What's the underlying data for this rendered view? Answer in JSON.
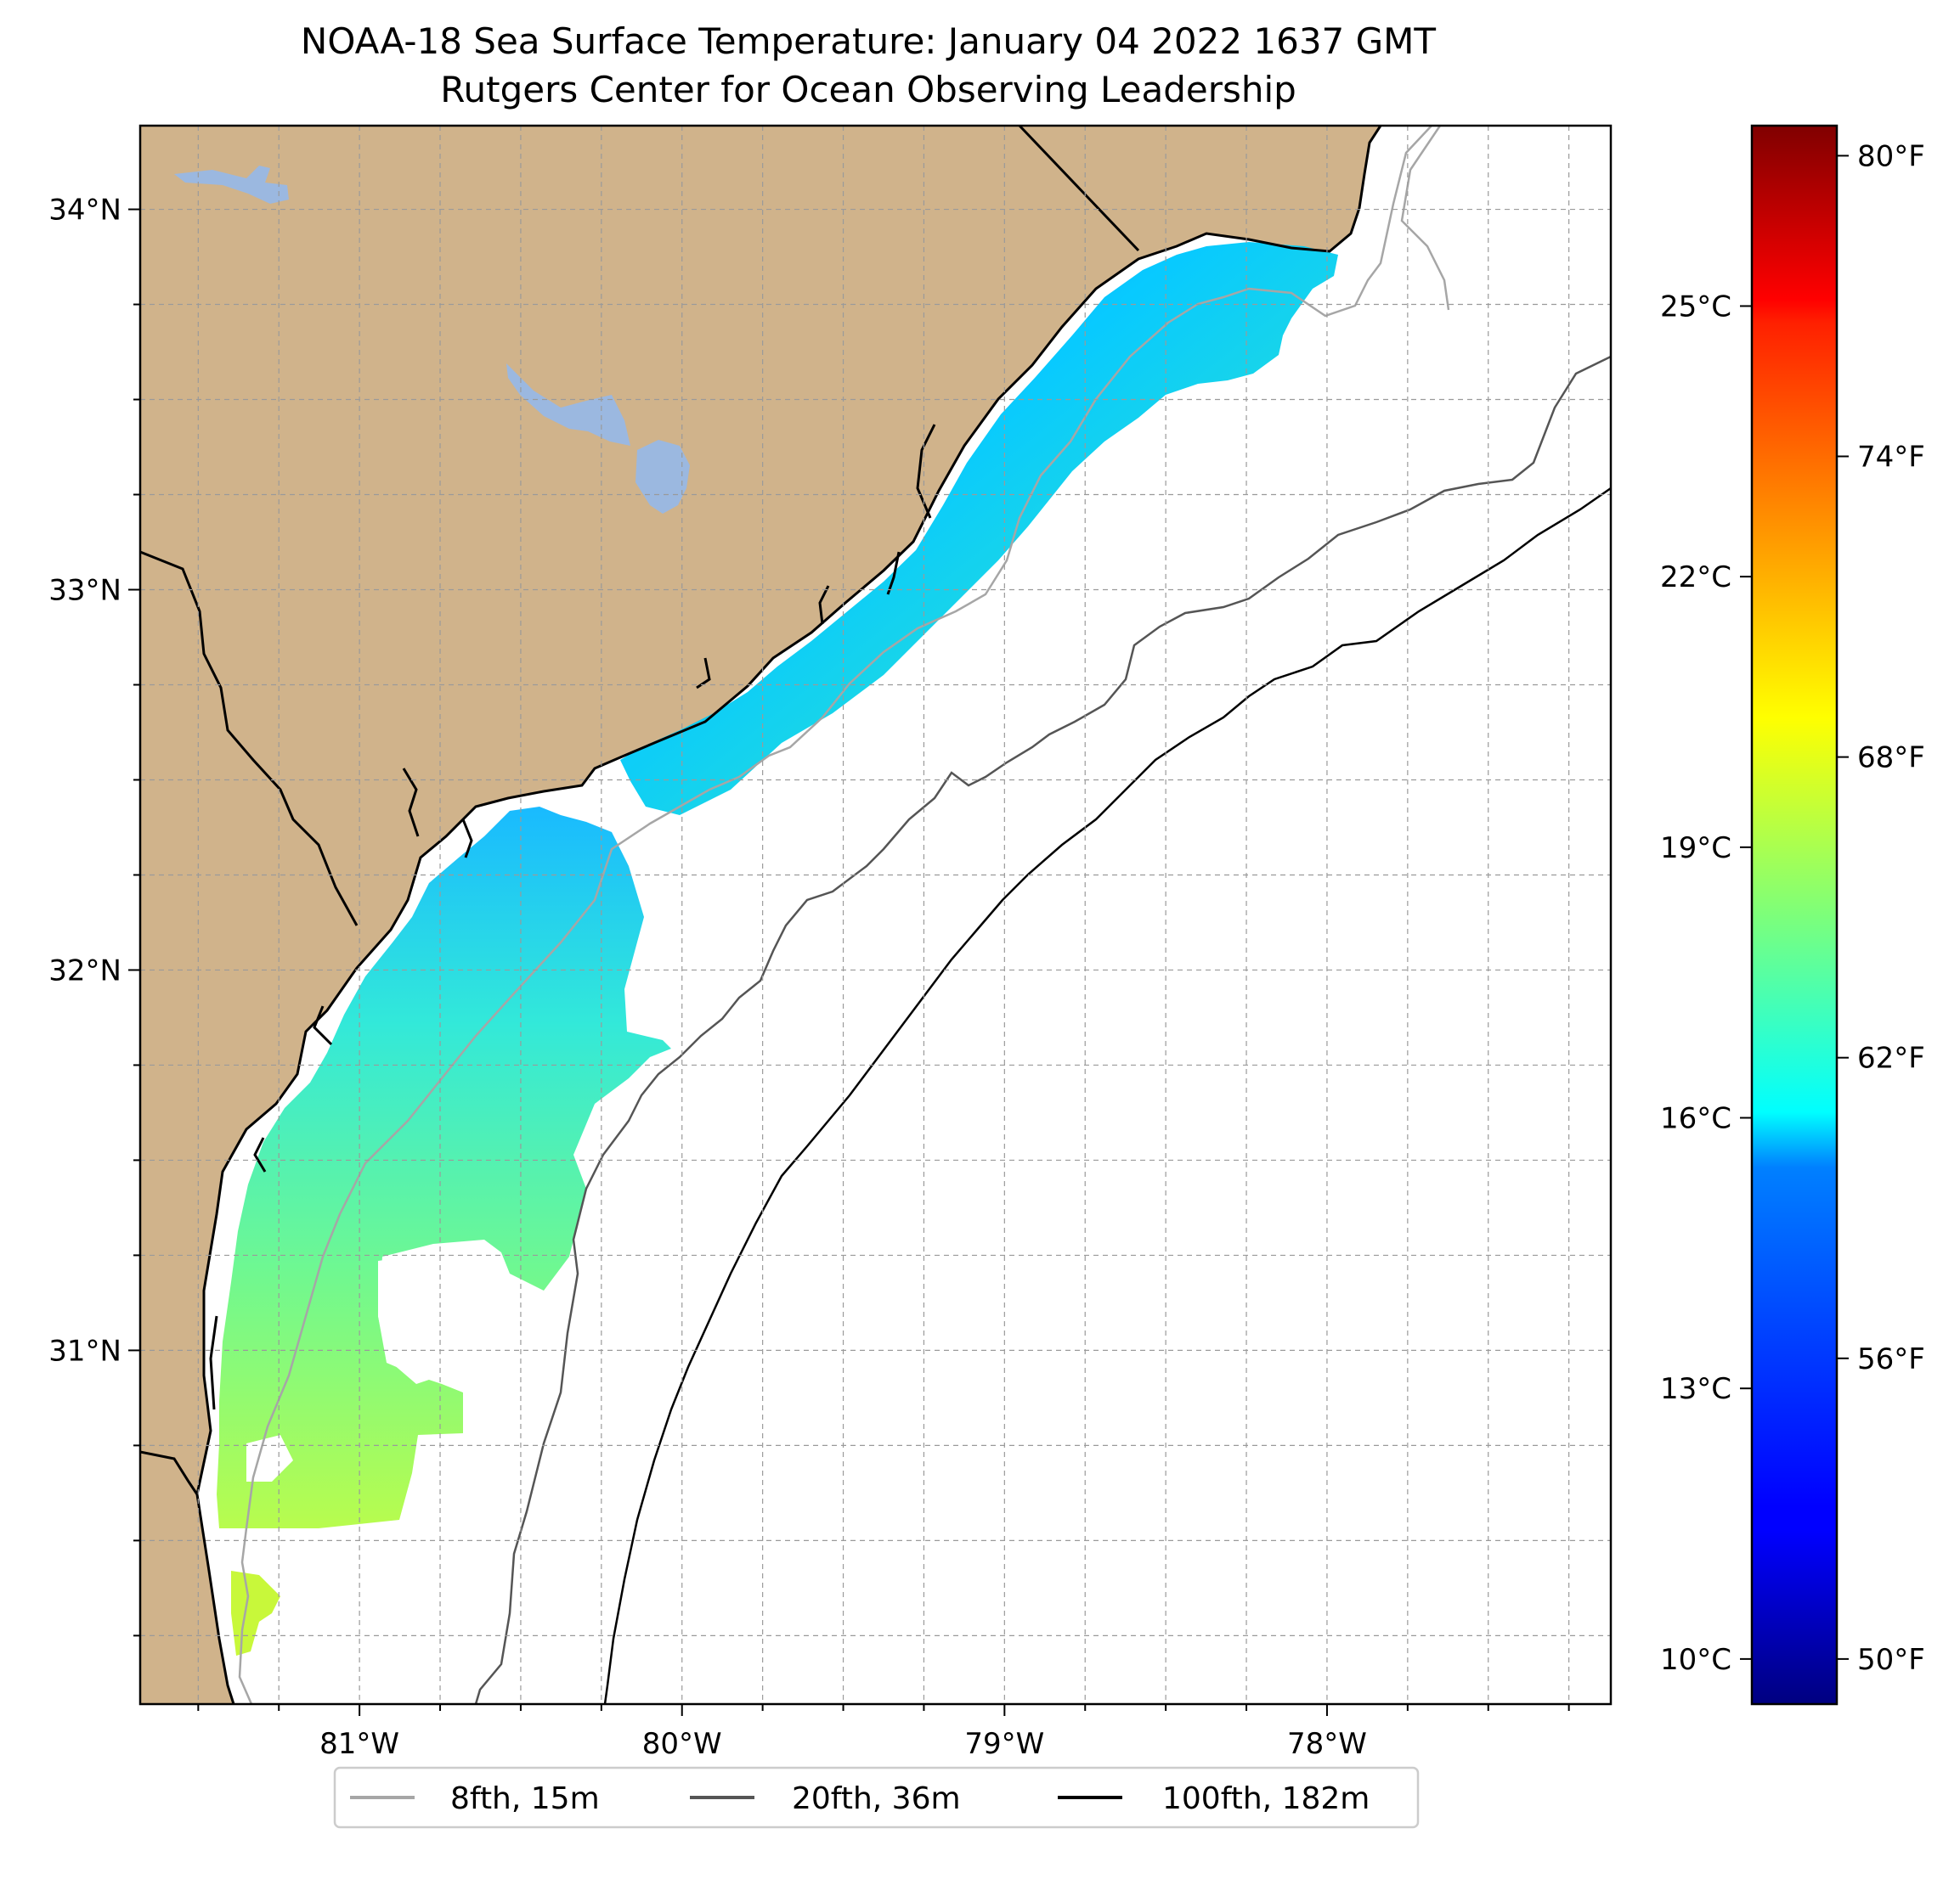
{
  "title": {
    "line1": "NOAA-18 Sea Surface Temperature: January 04 2022 1637 GMT",
    "line2": "Rutgers Center for Ocean Observing Leadership"
  },
  "map": {
    "lon_range": [
      -81.68,
      -77.12
    ],
    "lat_range": [
      30.07,
      34.22
    ],
    "lat_ticks": [
      {
        "value": 34,
        "label": "34°N"
      },
      {
        "value": 33,
        "label": "33°N"
      },
      {
        "value": 32,
        "label": "32°N"
      },
      {
        "value": 31,
        "label": "31°N"
      }
    ],
    "lon_ticks": [
      {
        "value": -81,
        "label": "81°W"
      },
      {
        "value": -80,
        "label": "80°W"
      },
      {
        "value": -79,
        "label": "79°W"
      },
      {
        "value": -78,
        "label": "78°W"
      }
    ],
    "gridlines": "dashed",
    "colors": {
      "land": "#d0b38b",
      "lakes": "#9bb8e0",
      "ocean": "#ffffff",
      "coastline": "#000000"
    }
  },
  "colorbar": {
    "colormap": "jet",
    "celsius_range": [
      9.5,
      27.0
    ],
    "celsius_ticks": [
      {
        "value": 10,
        "label": "10°C"
      },
      {
        "value": 13,
        "label": "13°C"
      },
      {
        "value": 16,
        "label": "16°C"
      },
      {
        "value": 19,
        "label": "19°C"
      },
      {
        "value": 22,
        "label": "22°C"
      },
      {
        "value": 25,
        "label": "25°C"
      }
    ],
    "fahrenheit_ticks": [
      {
        "value": 50,
        "label": "50°F"
      },
      {
        "value": 56,
        "label": "56°F"
      },
      {
        "value": 62,
        "label": "62°F"
      },
      {
        "value": 68,
        "label": "68°F"
      },
      {
        "value": 74,
        "label": "74°F"
      },
      {
        "value": 80,
        "label": "80°F"
      }
    ]
  },
  "legend": {
    "entries": [
      {
        "label": "8fth, 15m",
        "color": "#a6a6a6"
      },
      {
        "label": "20fth, 36m",
        "color": "#555555"
      },
      {
        "label": "100fth, 182m",
        "color": "#000000"
      }
    ]
  }
}
